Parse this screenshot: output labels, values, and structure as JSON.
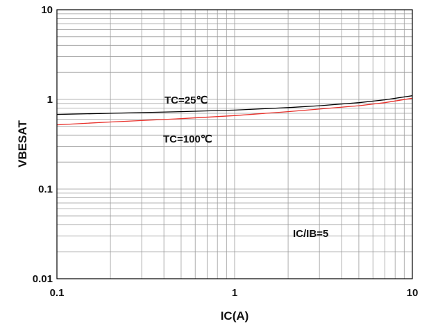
{
  "chart_data": {
    "type": "line",
    "title": "",
    "xlabel": "IC(A)",
    "ylabel": "VBESAT",
    "x_scale": "log",
    "y_scale": "log",
    "xlim": [
      0.1,
      10
    ],
    "ylim": [
      0.01,
      10
    ],
    "grid": true,
    "x_ticks": [
      "0.1",
      "1",
      "10"
    ],
    "y_ticks": [
      "0.01",
      "0.1",
      "1",
      "10"
    ],
    "series": [
      {
        "name": "TC=25℃",
        "color": "#000000",
        "x": [
          0.1,
          0.2,
          0.5,
          1,
          2,
          3,
          5,
          7,
          10
        ],
        "y": [
          0.68,
          0.7,
          0.73,
          0.76,
          0.81,
          0.85,
          0.92,
          0.99,
          1.1
        ]
      },
      {
        "name": "TC=100℃",
        "color": "#e8302a",
        "x": [
          0.1,
          0.2,
          0.5,
          1,
          2,
          3,
          5,
          7,
          10
        ],
        "y": [
          0.52,
          0.56,
          0.61,
          0.66,
          0.73,
          0.78,
          0.85,
          0.92,
          1.03
        ]
      }
    ],
    "annotations": [
      {
        "text": "TC=25℃"
      },
      {
        "text": "TC=100℃"
      },
      {
        "text": "IC/IB=5"
      }
    ]
  }
}
